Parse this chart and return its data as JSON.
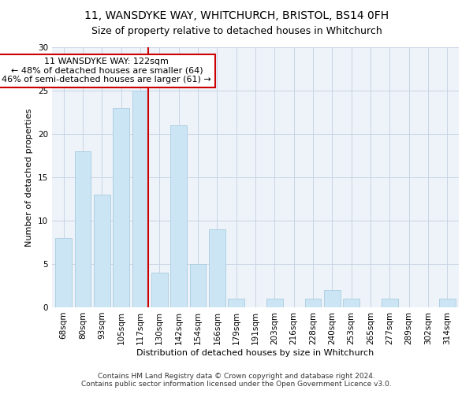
{
  "title": "11, WANSDYKE WAY, WHITCHURCH, BRISTOL, BS14 0FH",
  "subtitle": "Size of property relative to detached houses in Whitchurch",
  "xlabel": "Distribution of detached houses by size in Whitchurch",
  "ylabel": "Number of detached properties",
  "categories": [
    "68sqm",
    "80sqm",
    "93sqm",
    "105sqm",
    "117sqm",
    "130sqm",
    "142sqm",
    "154sqm",
    "166sqm",
    "179sqm",
    "191sqm",
    "203sqm",
    "216sqm",
    "228sqm",
    "240sqm",
    "253sqm",
    "265sqm",
    "277sqm",
    "289sqm",
    "302sqm",
    "314sqm"
  ],
  "values": [
    8,
    18,
    13,
    23,
    25,
    4,
    21,
    5,
    9,
    1,
    0,
    1,
    0,
    1,
    2,
    1,
    0,
    1,
    0,
    0,
    1
  ],
  "bar_color": "#cce5f5",
  "bar_edge_color": "#a8ccdf",
  "vline_color": "#cc0000",
  "annotation_line1": "11 WANSDYKE WAY: 122sqm",
  "annotation_line2": "← 48% of detached houses are smaller (64)",
  "annotation_line3": "46% of semi-detached houses are larger (61) →",
  "annotation_box_color": "white",
  "annotation_box_edge_color": "#cc0000",
  "ylim": [
    0,
    30
  ],
  "yticks": [
    0,
    5,
    10,
    15,
    20,
    25,
    30
  ],
  "footer_line1": "Contains HM Land Registry data © Crown copyright and database right 2024.",
  "footer_line2": "Contains public sector information licensed under the Open Government Licence v3.0.",
  "background_color": "#eef3f9",
  "grid_color": "#c8d4e4",
  "title_fontsize": 10,
  "subtitle_fontsize": 9,
  "axis_label_fontsize": 8,
  "tick_fontsize": 7.5,
  "annotation_fontsize": 8,
  "footer_fontsize": 6.5
}
